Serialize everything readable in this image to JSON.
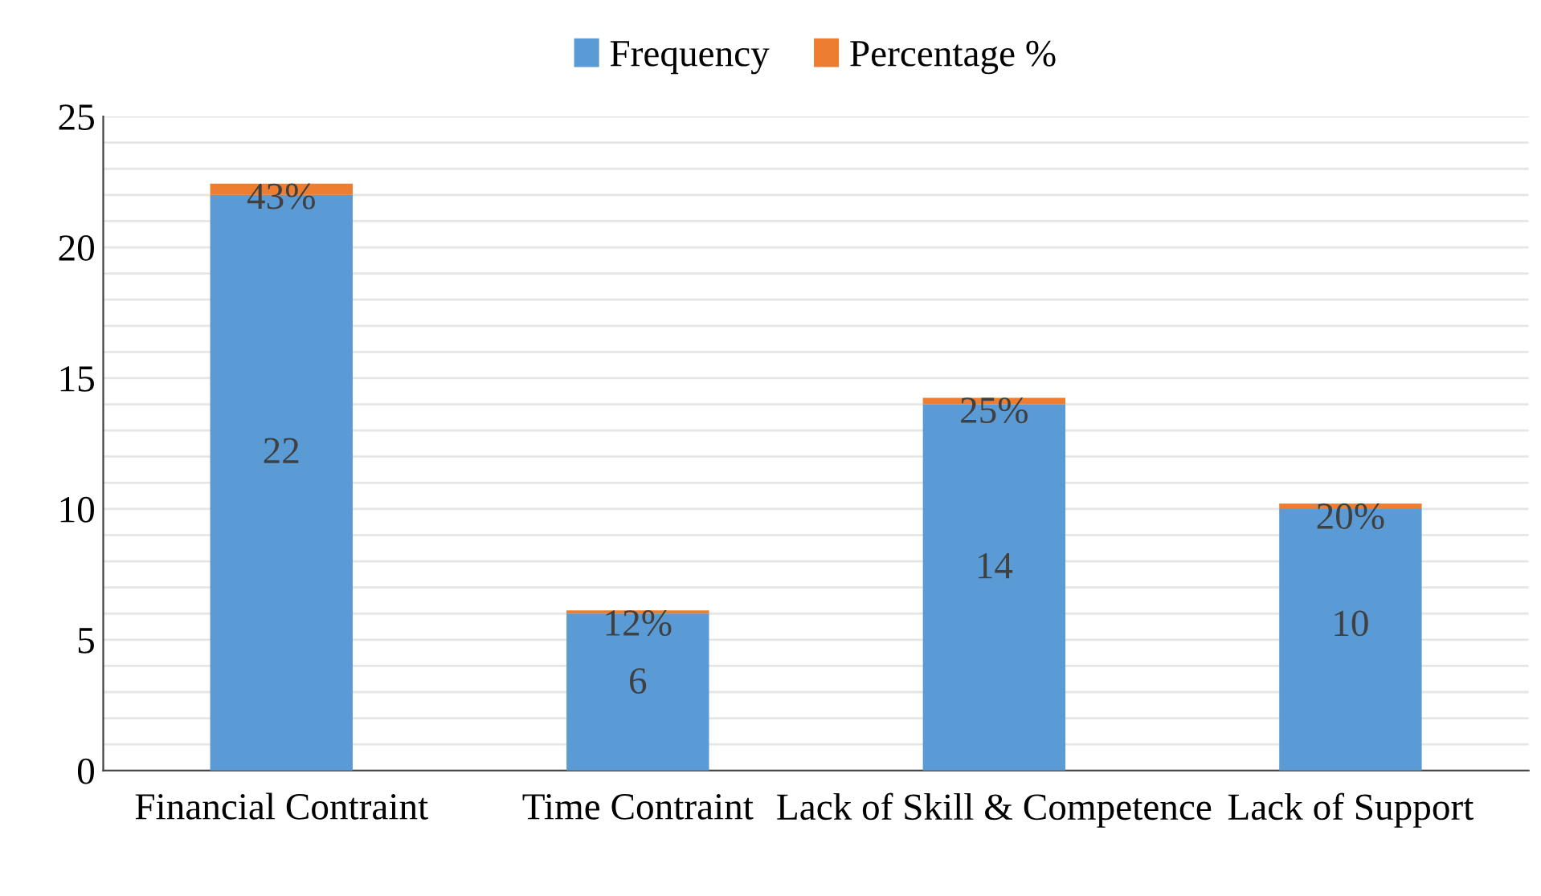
{
  "chart_data": {
    "type": "bar",
    "stacked": true,
    "categories": [
      "Financial Contraint",
      "Time Contraint",
      "Lack of Skill & Competence",
      "Lack of Support"
    ],
    "series": [
      {
        "name": "Frequency",
        "color": "#5b9bd5",
        "values": [
          22,
          6,
          14,
          10
        ],
        "value_labels": [
          "22",
          "6",
          "14",
          "10"
        ]
      },
      {
        "name": "Percentage %",
        "color": "#ed7d31",
        "values": [
          0.43,
          0.12,
          0.25,
          0.2
        ],
        "value_labels": [
          "43%",
          "12%",
          "25%",
          "20%"
        ]
      }
    ],
    "ylim": [
      0,
      25
    ],
    "yticks": [
      0,
      {
        "value": 1,
        "label": null
      },
      {
        "value": 2,
        "label": null
      },
      {
        "value": 3,
        "label": null
      },
      {
        "value": 4,
        "label": null
      },
      5,
      {
        "value": 6,
        "label": null
      },
      {
        "value": 7,
        "label": null
      },
      {
        "value": 8,
        "label": null
      },
      {
        "value": 9,
        "label": null
      },
      10,
      {
        "value": 11,
        "label": null
      },
      {
        "value": 12,
        "label": null
      },
      {
        "value": 13,
        "label": null
      },
      {
        "value": 14,
        "label": null
      },
      15,
      {
        "value": 16,
        "label": null
      },
      {
        "value": 17,
        "label": null
      },
      {
        "value": 18,
        "label": null
      },
      {
        "value": 19,
        "label": null
      },
      20,
      {
        "value": 21,
        "label": null
      },
      {
        "value": 22,
        "label": null
      },
      {
        "value": 23,
        "label": null
      },
      {
        "value": 24,
        "label": null
      },
      25
    ],
    "grid": "y",
    "legend": "top"
  }
}
